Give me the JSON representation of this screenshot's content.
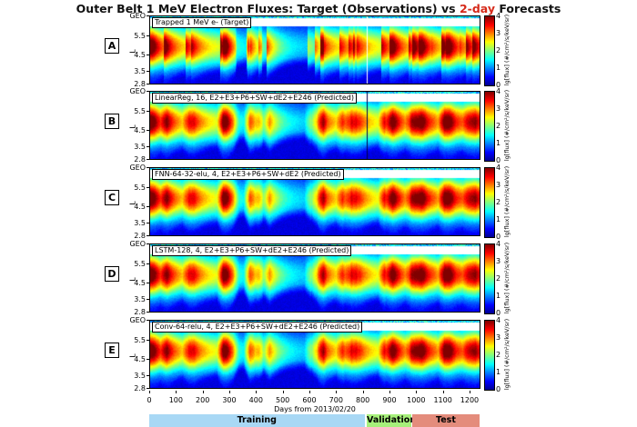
{
  "title": {
    "prefix": "Outer Belt 1 MeV Electron Fluxes: Target (Observations) vs ",
    "highlight": "2-day",
    "suffix": " Forecasts",
    "highlight_color": "#d62a1a"
  },
  "chart_data": {
    "type": "heatmap",
    "xlabel": "Days from 2013/02/20",
    "xlim": [
      0,
      1241
    ],
    "xticks": [
      "0",
      "100",
      "200",
      "300",
      "400",
      "500",
      "600",
      "700",
      "800",
      "900",
      "1000",
      "1100",
      "1200"
    ],
    "ylabel": "L",
    "yticks": [
      "2.8",
      "3.5",
      "4.5",
      "5.5",
      "GEO"
    ],
    "colorbar": {
      "label": "lg[flux] (#/cm²/s/keV/sr)",
      "range": [
        0,
        4
      ],
      "ticks": [
        "0",
        "1",
        "2",
        "3",
        "4"
      ],
      "colormap": "jet"
    },
    "panels": [
      {
        "letter": "A",
        "label": "Trapped 1 MeV e- (Target)"
      },
      {
        "letter": "B",
        "label": "LinearReg, 16, E2+E3+P6+SW+dE2+E246 (Predicted)"
      },
      {
        "letter": "C",
        "label": "FNN-64-32-elu, 4, E2+E3+P6+SW+dE2 (Predicted)"
      },
      {
        "letter": "D",
        "label": "LSTM-128, 4, E2+E3+P6+SW+dE2+E246 (Predicted)"
      },
      {
        "letter": "E",
        "label": "Conv-64-relu, 4, E2+E3+P6+SW+dE2+E246 (Predicted)"
      }
    ],
    "data_gap_day": 815,
    "splits": [
      {
        "name": "Training",
        "start": 0,
        "end": 810,
        "color": "#a8d8f5"
      },
      {
        "name": "Validation",
        "start": 815,
        "end": 985,
        "color": "#a6f07a"
      },
      {
        "name": "Test",
        "start": 985,
        "end": 1241,
        "color": "#e48c7c"
      }
    ]
  }
}
